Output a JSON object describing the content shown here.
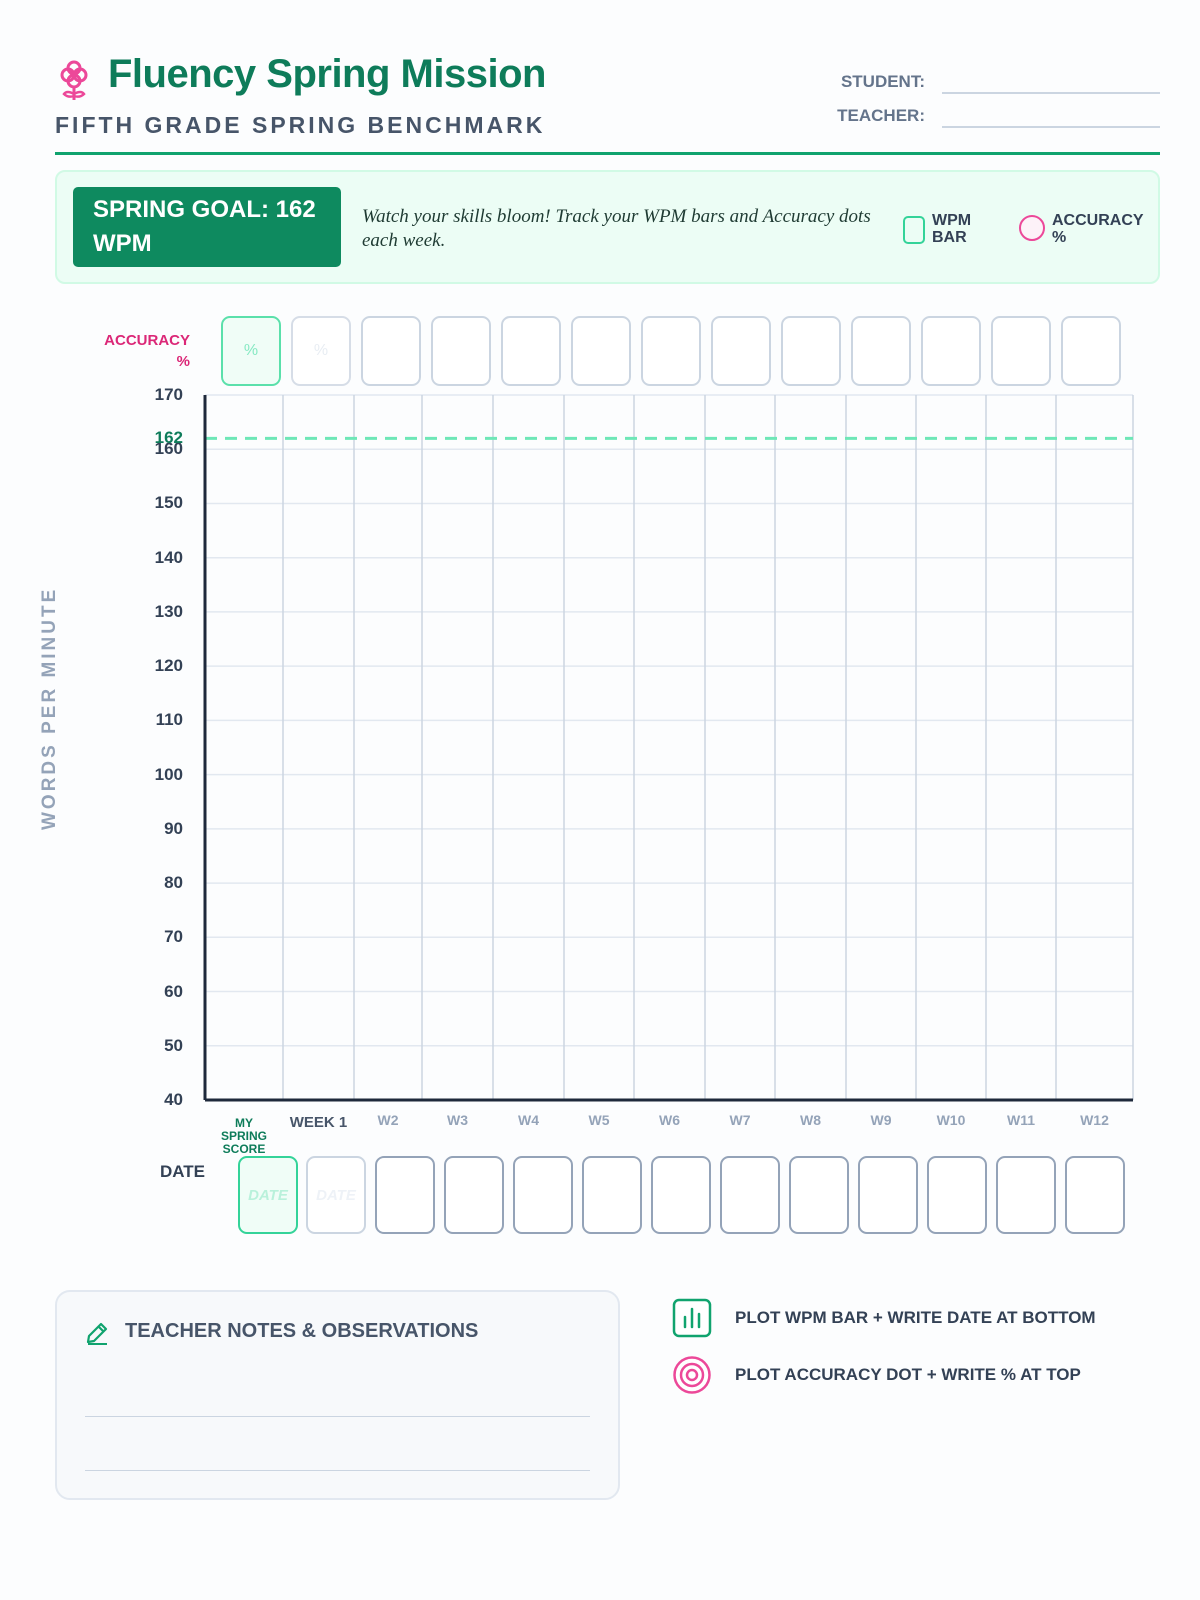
{
  "header": {
    "title": "Fluency Spring Mission",
    "subtitle": "FIFTH GRADE SPRING BENCHMARK",
    "student_label": "STUDENT:",
    "teacher_label": "TEACHER:"
  },
  "goal_banner": {
    "goal_text": "SPRING GOAL: 162 WPM",
    "message": "Watch your skills bloom! Track your WPM bars and Accuracy dots each week.",
    "legend": {
      "wpm_label": "WPM BAR",
      "accuracy_label": "ACCURACY %"
    }
  },
  "accuracy_row": {
    "label": "ACCURACY %",
    "placeholder": "%"
  },
  "chart_data": {
    "type": "bar",
    "ylabel": "WORDS PER MINUTE",
    "ylim": [
      40,
      170
    ],
    "yticks": [
      40,
      50,
      60,
      70,
      80,
      90,
      100,
      110,
      120,
      130,
      140,
      150,
      160,
      162,
      170
    ],
    "goal_line": 162,
    "categories": [
      "MY SPRING SCORE",
      "WEEK 1",
      "W2",
      "W3",
      "W4",
      "W5",
      "W6",
      "W7",
      "W8",
      "W9",
      "W10",
      "W11",
      "W12"
    ],
    "series": [],
    "grid": true
  },
  "date_row": {
    "label": "DATE",
    "placeholder": "DATE"
  },
  "notes": {
    "title": "TEACHER NOTES & OBSERVATIONS"
  },
  "instructions": {
    "bar": "PLOT WPM BAR + WRITE DATE AT BOTTOM",
    "dot": "PLOT ACCURACY DOT + WRITE % AT TOP"
  },
  "colors": {
    "brand_green": "#0e7c5a",
    "wpm_green": "#34d399",
    "accuracy_pink": "#ec4899",
    "goal_line": "#6ee7b7"
  },
  "icons": {
    "title_icon": "flower-icon",
    "notes_icon": "pencil-icon",
    "bar_instruction_icon": "bar-chart-icon",
    "dot_instruction_icon": "target-icon"
  }
}
